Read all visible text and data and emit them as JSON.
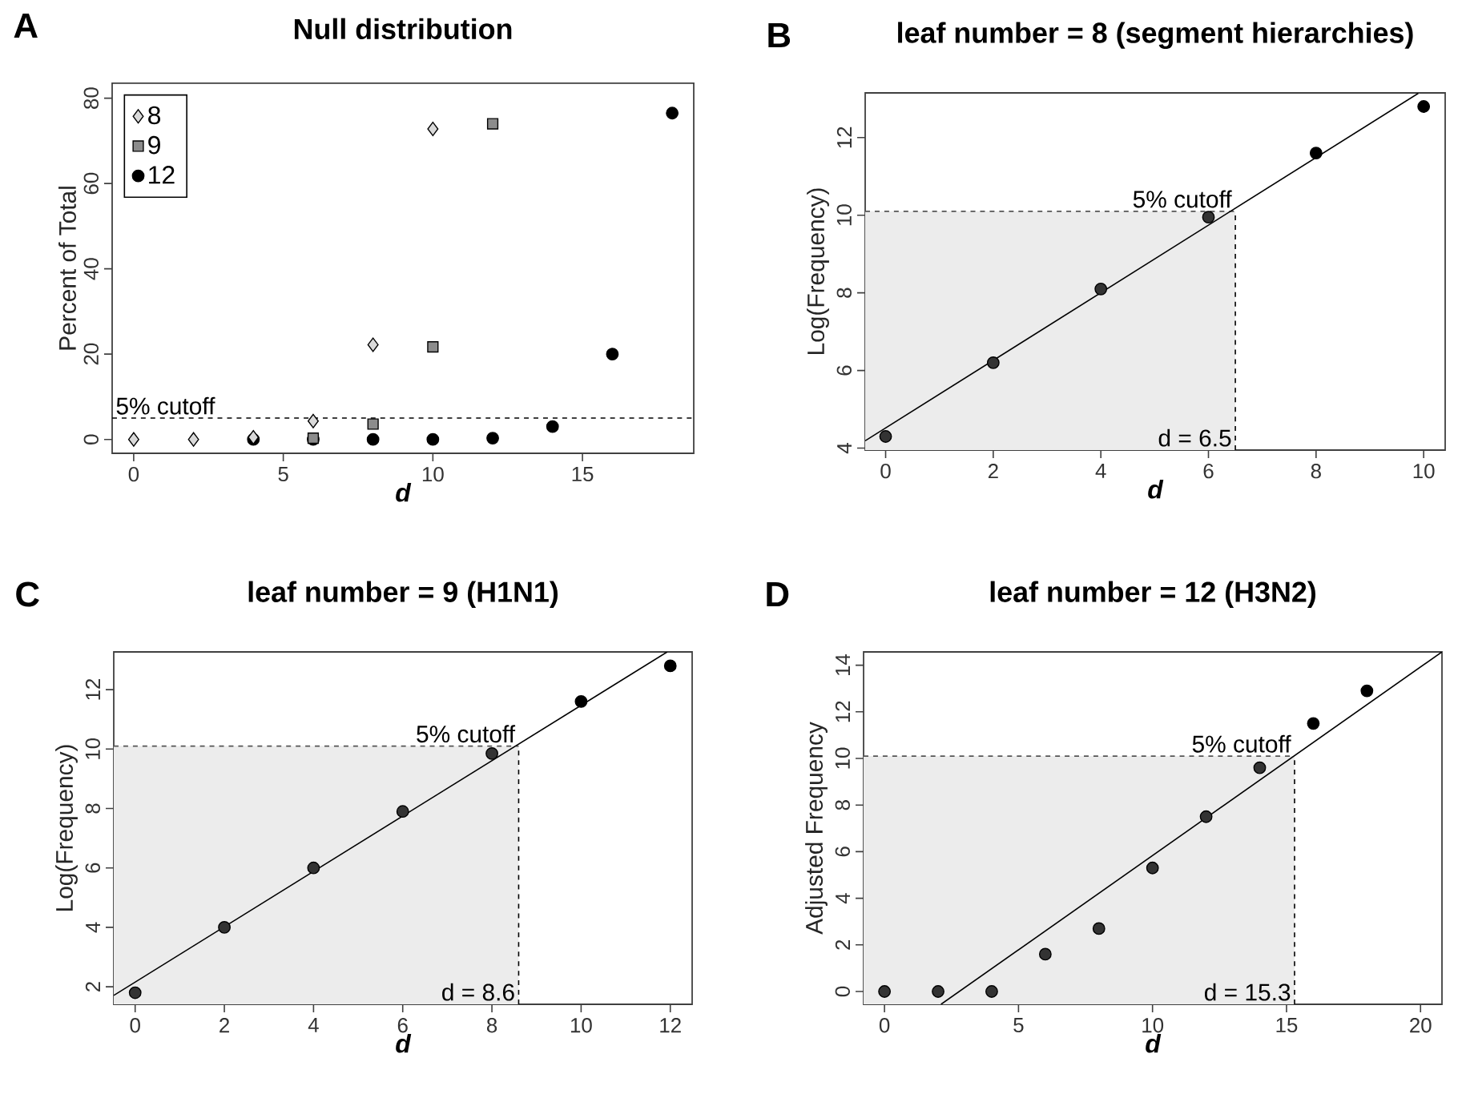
{
  "chart_data": [
    {
      "type": "scatter",
      "title": "Null distribution",
      "xlabel": "d",
      "ylabel": "Percent of Total",
      "annotations": [
        "A"
      ],
      "xlim": [
        -0.72,
        18.72
      ],
      "ylim": [
        -3.25,
        83.5
      ],
      "xticks": [
        0,
        5,
        10,
        15
      ],
      "yticks": [
        0,
        20,
        40,
        60,
        80
      ],
      "legend": "top left",
      "series": [
        {
          "name": "8",
          "marker": "diamond",
          "color": "#d9d9d9",
          "x": [
            0,
            2,
            4,
            6,
            8,
            10
          ],
          "values": [
            0,
            0,
            0.5,
            4.3,
            22.2,
            72.8
          ]
        },
        {
          "name": "9",
          "marker": "square",
          "color": "#8c8c8c",
          "x": [
            6,
            8,
            10,
            12
          ],
          "values": [
            0.3,
            3.6,
            21.7,
            74
          ]
        },
        {
          "name": "12",
          "marker": "circle",
          "color": "#000000",
          "x": [
            4,
            6,
            8,
            10,
            12,
            14,
            16,
            18
          ],
          "values": [
            0,
            0,
            0,
            0,
            0.3,
            3,
            20,
            76.5
          ]
        }
      ],
      "ref_lines": [
        {
          "axis": "y",
          "value": 5,
          "label": "5% cutoff",
          "line_style": "dashed",
          "color": "#000000"
        }
      ]
    },
    {
      "type": "scatter",
      "title": "leaf number = 8 (segment hierarchies)",
      "xlabel": "d",
      "ylabel": "Log(Frequency)",
      "annotations": [
        "B"
      ],
      "xlim": [
        -0.38,
        10.4
      ],
      "ylim": [
        3.95,
        13.15
      ],
      "xticks": [
        0,
        2,
        4,
        6,
        8,
        10
      ],
      "yticks": [
        4,
        6,
        8,
        10,
        12
      ],
      "series": [
        {
          "marker": "circle",
          "x": [
            0,
            2,
            4,
            6,
            8,
            10
          ],
          "values": [
            4.3,
            6.2,
            8.1,
            9.95,
            11.6,
            12.8
          ],
          "colors": [
            "#333333",
            "#333333",
            "#333333",
            "#333333",
            "#000000",
            "#000000"
          ]
        },
        {
          "type": "line",
          "color": "#000000",
          "x": [
            -0.38,
            9.9
          ],
          "values": [
            4.19,
            13.14
          ]
        }
      ],
      "ref_lines": [
        {
          "axis": "y",
          "value": 10.1,
          "label": "5% cutoff",
          "line_style": "dashed",
          "color": "#555555"
        },
        {
          "axis": "x",
          "value": 6.5,
          "label": "d = 6.5",
          "line_style": "dashed",
          "color": "#000000"
        }
      ],
      "bands": [
        {
          "axis": "x",
          "from": -0.38,
          "to": 6.5,
          "color": "#ececec"
        }
      ]
    },
    {
      "type": "scatter",
      "title": "leaf number = 9 (H1N1)",
      "xlabel": "d",
      "ylabel": "Log(Frequency)",
      "annotations": [
        "C"
      ],
      "xlim": [
        -0.48,
        12.49
      ],
      "ylim": [
        1.41,
        13.27
      ],
      "xticks": [
        0,
        2,
        4,
        6,
        8,
        10,
        12
      ],
      "yticks": [
        2,
        4,
        6,
        8,
        10,
        12
      ],
      "series": [
        {
          "marker": "circle",
          "x": [
            0,
            2,
            4,
            6,
            8,
            10,
            12
          ],
          "values": [
            1.8,
            4.0,
            6.0,
            7.9,
            9.85,
            11.6,
            12.8
          ],
          "colors": [
            "#333333",
            "#333333",
            "#333333",
            "#333333",
            "#333333",
            "#000000",
            "#000000"
          ]
        },
        {
          "type": "line",
          "color": "#000000",
          "x": [
            -0.48,
            11.93
          ],
          "values": [
            1.71,
            13.27
          ]
        }
      ],
      "ref_lines": [
        {
          "axis": "y",
          "value": 10.1,
          "label": "5% cutoff",
          "line_style": "dashed",
          "color": "#555555"
        },
        {
          "axis": "x",
          "value": 8.6,
          "label": "d = 8.6",
          "line_style": "dashed",
          "color": "#000000"
        }
      ],
      "bands": [
        {
          "axis": "x",
          "from": -0.48,
          "to": 8.6,
          "color": "#ececec"
        }
      ]
    },
    {
      "type": "scatter",
      "title": "leaf number = 12 (H3N2)",
      "xlabel": "d",
      "ylabel": "Adjusted Frequency",
      "annotations": [
        "D"
      ],
      "xlim": [
        -0.78,
        20.8
      ],
      "ylim": [
        -0.55,
        14.57
      ],
      "xticks": [
        0,
        5,
        10,
        15,
        20
      ],
      "yticks": [
        0,
        2,
        4,
        6,
        8,
        10,
        12,
        14
      ],
      "series": [
        {
          "marker": "circle",
          "x": [
            0,
            2,
            4,
            6,
            8,
            10,
            12,
            14,
            16,
            18
          ],
          "values": [
            0,
            0,
            0,
            1.6,
            2.7,
            5.3,
            7.5,
            9.6,
            11.5,
            12.9
          ],
          "colors": [
            "#333333",
            "#333333",
            "#333333",
            "#333333",
            "#333333",
            "#333333",
            "#333333",
            "#333333",
            "#000000",
            "#000000"
          ]
        },
        {
          "type": "line",
          "color": "#000000",
          "x": [
            2.11,
            20.8
          ],
          "values": [
            -0.55,
            14.57
          ]
        }
      ],
      "ref_lines": [
        {
          "axis": "y",
          "value": 10.1,
          "label": "5% cutoff",
          "line_style": "dashed",
          "color": "#555555"
        },
        {
          "axis": "x",
          "value": 15.3,
          "label": "d = 15.3",
          "line_style": "dashed",
          "color": "#000000"
        }
      ],
      "bands": [
        {
          "axis": "x",
          "from": -0.78,
          "to": 15.3,
          "color": "#ececec"
        }
      ]
    }
  ]
}
